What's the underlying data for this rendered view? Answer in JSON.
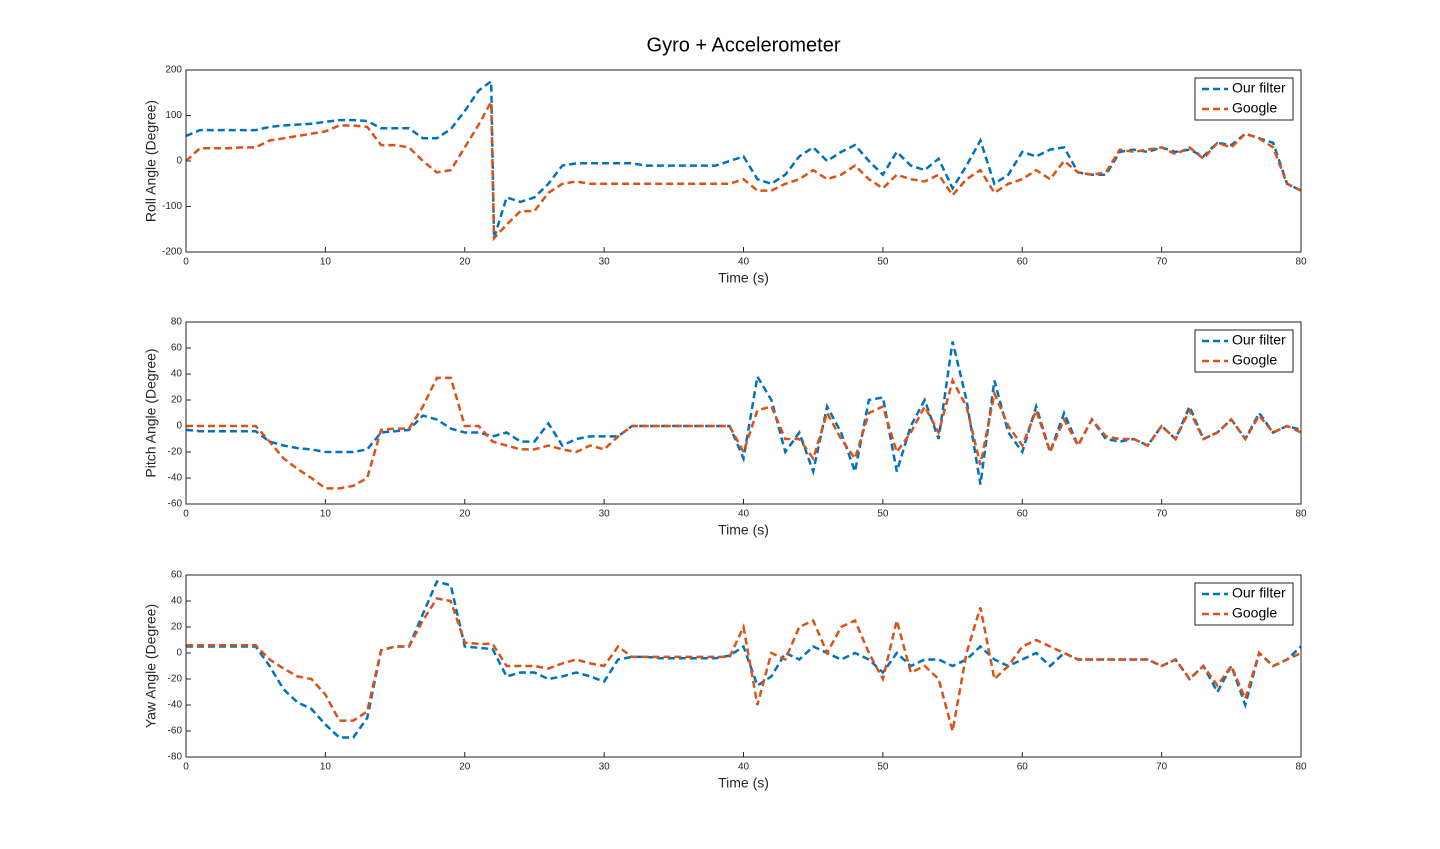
{
  "chart_data": [
    {
      "type": "line",
      "title": "Gyro + Accelerometer",
      "xlabel": "Time (s)",
      "ylabel": "Roll Angle (Degree)",
      "x": [
        0,
        1,
        2,
        3,
        4,
        5,
        6,
        7,
        8,
        9,
        10,
        11,
        12,
        13,
        14,
        15,
        16,
        17,
        18,
        19,
        20,
        21,
        21.9,
        22.1,
        23,
        24,
        25,
        26,
        27,
        28,
        29,
        30,
        31,
        32,
        33,
        34,
        35,
        36,
        37,
        38,
        39,
        40,
        41,
        42,
        43,
        44,
        45,
        46,
        47,
        48,
        49,
        50,
        51,
        52,
        53,
        54,
        55,
        56,
        57,
        58,
        59,
        60,
        61,
        62,
        63,
        64,
        65,
        66,
        67,
        68,
        69,
        70,
        71,
        72,
        73,
        74,
        75,
        76,
        77,
        78,
        79,
        80
      ],
      "series": [
        {
          "name": "Our filter",
          "color": "#0072BD",
          "values": [
            55,
            68,
            68,
            68,
            68,
            68,
            75,
            78,
            80,
            82,
            86,
            90,
            90,
            88,
            72,
            72,
            72,
            50,
            50,
            70,
            110,
            155,
            175,
            -170,
            -80,
            -90,
            -80,
            -50,
            -10,
            -5,
            -5,
            -5,
            -5,
            -5,
            -10,
            -10,
            -10,
            -10,
            -10,
            -10,
            0,
            10,
            -40,
            -50,
            -30,
            10,
            30,
            0,
            20,
            35,
            0,
            -30,
            20,
            -10,
            -20,
            5,
            -60,
            -10,
            45,
            -50,
            -30,
            20,
            10,
            25,
            30,
            -25,
            -30,
            -30,
            20,
            25,
            20,
            30,
            20,
            25,
            10,
            40,
            35,
            60,
            50,
            40,
            -50,
            -65
          ]
        },
        {
          "name": "Google",
          "color": "#D95319",
          "values": [
            0,
            28,
            28,
            28,
            30,
            30,
            45,
            50,
            55,
            60,
            65,
            78,
            78,
            75,
            35,
            35,
            30,
            0,
            -25,
            -20,
            30,
            80,
            130,
            -170,
            -140,
            -110,
            -110,
            -70,
            -50,
            -45,
            -50,
            -50,
            -50,
            -50,
            -50,
            -50,
            -50,
            -50,
            -50,
            -50,
            -50,
            -40,
            -65,
            -65,
            -50,
            -40,
            -20,
            -40,
            -30,
            -10,
            -40,
            -60,
            -30,
            -40,
            -45,
            -30,
            -75,
            -40,
            -20,
            -70,
            -50,
            -40,
            -20,
            -40,
            0,
            -25,
            -30,
            -25,
            25,
            20,
            25,
            30,
            15,
            30,
            5,
            40,
            30,
            60,
            50,
            30,
            -50,
            -65
          ]
        }
      ],
      "xlim": [
        0,
        80
      ],
      "xticks": [
        0,
        10,
        20,
        30,
        40,
        50,
        60,
        70,
        80
      ],
      "ylim": [
        -200,
        200
      ],
      "yticks": [
        -200,
        -100,
        0,
        100,
        200
      ],
      "grid": false,
      "legend": "northeast"
    },
    {
      "type": "line",
      "xlabel": "Time (s)",
      "ylabel": "Pitch Angle (Degree)",
      "x": [
        0,
        1,
        2,
        3,
        4,
        5,
        6,
        7,
        8,
        9,
        10,
        11,
        12,
        13,
        14,
        15,
        16,
        17,
        18,
        19,
        20,
        21,
        22,
        23,
        24,
        25,
        26,
        27,
        28,
        29,
        30,
        31,
        32,
        33,
        34,
        35,
        36,
        37,
        38,
        39,
        40,
        41,
        42,
        43,
        44,
        45,
        46,
        47,
        48,
        49,
        50,
        51,
        52,
        53,
        54,
        55,
        56,
        57,
        58,
        59,
        60,
        61,
        62,
        63,
        64,
        65,
        66,
        67,
        68,
        69,
        70,
        71,
        72,
        73,
        74,
        75,
        76,
        77,
        78,
        79,
        80
      ],
      "series": [
        {
          "name": "Our filter",
          "color": "#0072BD",
          "values": [
            -3,
            -4,
            -4,
            -4,
            -4,
            -4,
            -12,
            -15,
            -17,
            -18,
            -20,
            -20,
            -20,
            -18,
            -5,
            -4,
            -3,
            8,
            5,
            -2,
            -5,
            -5,
            -8,
            -5,
            -12,
            -12,
            2,
            -15,
            -10,
            -8,
            -8,
            -8,
            0,
            0,
            0,
            0,
            0,
            0,
            0,
            0,
            -25,
            38,
            20,
            -20,
            -5,
            -35,
            15,
            -5,
            -35,
            20,
            22,
            -35,
            0,
            20,
            -10,
            65,
            20,
            -45,
            35,
            -5,
            -20,
            15,
            -20,
            10,
            -15,
            5,
            -10,
            -12,
            -10,
            -15,
            0,
            -10,
            15,
            -10,
            -5,
            5,
            -10,
            10,
            -5,
            0,
            -3
          ]
        },
        {
          "name": "Google",
          "color": "#D95319",
          "values": [
            0,
            0,
            0,
            0,
            0,
            0,
            -12,
            -25,
            -33,
            -40,
            -48,
            -48,
            -46,
            -40,
            -3,
            -2,
            -2,
            15,
            37,
            37,
            0,
            0,
            -12,
            -15,
            -18,
            -18,
            -15,
            -18,
            -20,
            -15,
            -18,
            -8,
            0,
            0,
            0,
            0,
            0,
            0,
            0,
            0,
            -20,
            12,
            15,
            -10,
            -10,
            -25,
            10,
            -10,
            -25,
            10,
            15,
            -20,
            -5,
            15,
            -5,
            35,
            15,
            -30,
            25,
            0,
            -15,
            12,
            -20,
            5,
            -15,
            5,
            -8,
            -10,
            -10,
            -15,
            0,
            -10,
            12,
            -10,
            -5,
            5,
            -10,
            8,
            -5,
            0,
            -5
          ]
        }
      ],
      "xlim": [
        0,
        80
      ],
      "xticks": [
        0,
        10,
        20,
        30,
        40,
        50,
        60,
        70,
        80
      ],
      "ylim": [
        -60,
        80
      ],
      "yticks": [
        -60,
        -40,
        -20,
        0,
        20,
        40,
        60,
        80
      ],
      "grid": false,
      "legend": "northeast"
    },
    {
      "type": "line",
      "xlabel": "Time (s)",
      "ylabel": "Yaw Angle (Degree)",
      "x": [
        0,
        1,
        2,
        3,
        4,
        5,
        6,
        7,
        8,
        9,
        10,
        11,
        12,
        13,
        14,
        15,
        16,
        17,
        18,
        19,
        20,
        21,
        22,
        23,
        24,
        25,
        26,
        27,
        28,
        29,
        30,
        31,
        32,
        33,
        34,
        35,
        36,
        37,
        38,
        39,
        40,
        41,
        42,
        43,
        44,
        45,
        46,
        47,
        48,
        49,
        50,
        51,
        52,
        53,
        54,
        55,
        56,
        57,
        58,
        59,
        60,
        61,
        62,
        63,
        64,
        65,
        66,
        67,
        68,
        69,
        70,
        71,
        72,
        73,
        74,
        75,
        76,
        77,
        78,
        79,
        80
      ],
      "series": [
        {
          "name": "Our filter",
          "color": "#0072BD",
          "values": [
            5,
            5,
            5,
            5,
            5,
            5,
            -10,
            -28,
            -38,
            -43,
            -55,
            -65,
            -65,
            -50,
            2,
            5,
            5,
            30,
            55,
            52,
            5,
            4,
            3,
            -18,
            -15,
            -15,
            -20,
            -18,
            -15,
            -18,
            -22,
            -5,
            -3,
            -3,
            -4,
            -4,
            -4,
            -4,
            -4,
            -2,
            5,
            -25,
            -18,
            0,
            -5,
            5,
            0,
            -5,
            0,
            -5,
            -15,
            0,
            -10,
            -5,
            -5,
            -10,
            -5,
            5,
            -5,
            -10,
            -5,
            0,
            -10,
            0,
            -5,
            -5,
            -5,
            -5,
            -5,
            -5,
            -10,
            -5,
            -20,
            -10,
            -30,
            -10,
            -40,
            0,
            -10,
            -5,
            5
          ]
        },
        {
          "name": "Google",
          "color": "#D95319",
          "values": [
            6,
            6,
            6,
            6,
            6,
            6,
            -5,
            -12,
            -18,
            -20,
            -32,
            -52,
            -52,
            -45,
            2,
            5,
            5,
            25,
            42,
            40,
            8,
            7,
            7,
            -10,
            -10,
            -10,
            -12,
            -8,
            -5,
            -8,
            -10,
            5,
            -3,
            -3,
            -3,
            -3,
            -3,
            -3,
            -3,
            -3,
            20,
            -40,
            0,
            -5,
            20,
            25,
            0,
            20,
            25,
            0,
            -20,
            25,
            -15,
            -10,
            -20,
            -60,
            0,
            35,
            -20,
            -10,
            5,
            10,
            5,
            0,
            -5,
            -5,
            -5,
            -5,
            -5,
            -5,
            -10,
            -5,
            -20,
            -10,
            -25,
            -10,
            -35,
            0,
            -10,
            -5,
            0
          ]
        }
      ],
      "xlim": [
        0,
        80
      ],
      "xticks": [
        0,
        10,
        20,
        30,
        40,
        50,
        60,
        70,
        80
      ],
      "ylim": [
        -80,
        60
      ],
      "yticks": [
        -80,
        -60,
        -40,
        -20,
        0,
        20,
        40,
        60
      ],
      "grid": false,
      "legend": "northeast"
    }
  ]
}
